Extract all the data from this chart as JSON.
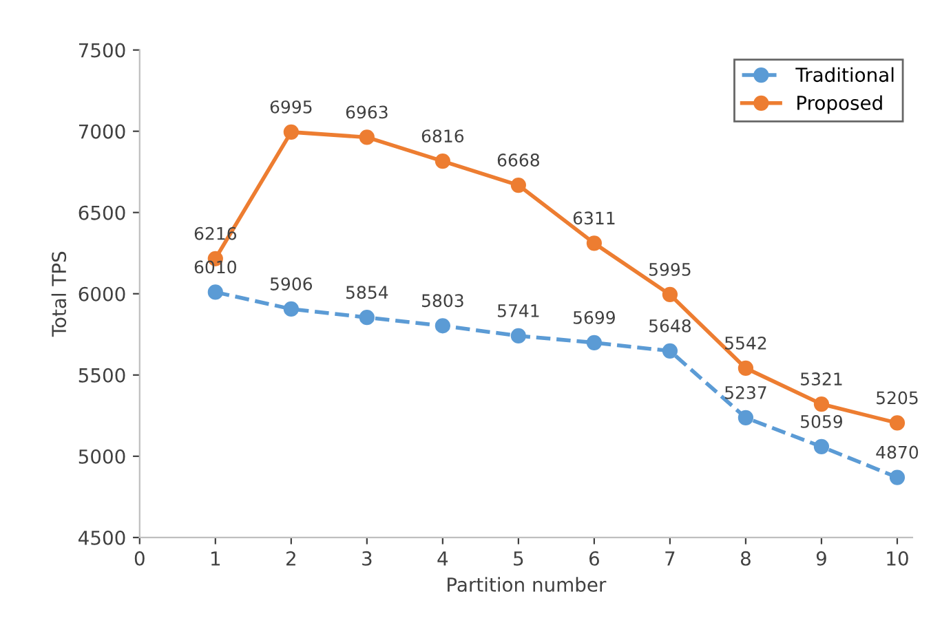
{
  "chart_data": {
    "type": "line",
    "xlabel": "Partition number",
    "ylabel": "Total TPS",
    "x": [
      1,
      2,
      3,
      4,
      5,
      6,
      7,
      8,
      9,
      10
    ],
    "series": [
      {
        "name": "Traditional",
        "color": "#5b9bd5",
        "line_style": "dashed",
        "values": [
          6010,
          5906,
          5854,
          5803,
          5741,
          5699,
          5648,
          5237,
          5059,
          4870
        ]
      },
      {
        "name": "Proposed",
        "color": "#ed7d31",
        "line_style": "solid",
        "values": [
          6216,
          6995,
          6963,
          6816,
          6668,
          6311,
          5995,
          5542,
          5321,
          5205
        ]
      }
    ],
    "xlim": [
      0,
      10.2
    ],
    "xticks": [
      0,
      1,
      2,
      3,
      4,
      5,
      6,
      7,
      8,
      9,
      10
    ],
    "ylim": [
      4500,
      7500
    ],
    "yticks": [
      4500,
      5000,
      5500,
      6000,
      6500,
      7000,
      7500
    ],
    "marker": "circle",
    "data_labels": true,
    "legend": "top right",
    "grid": false
  }
}
